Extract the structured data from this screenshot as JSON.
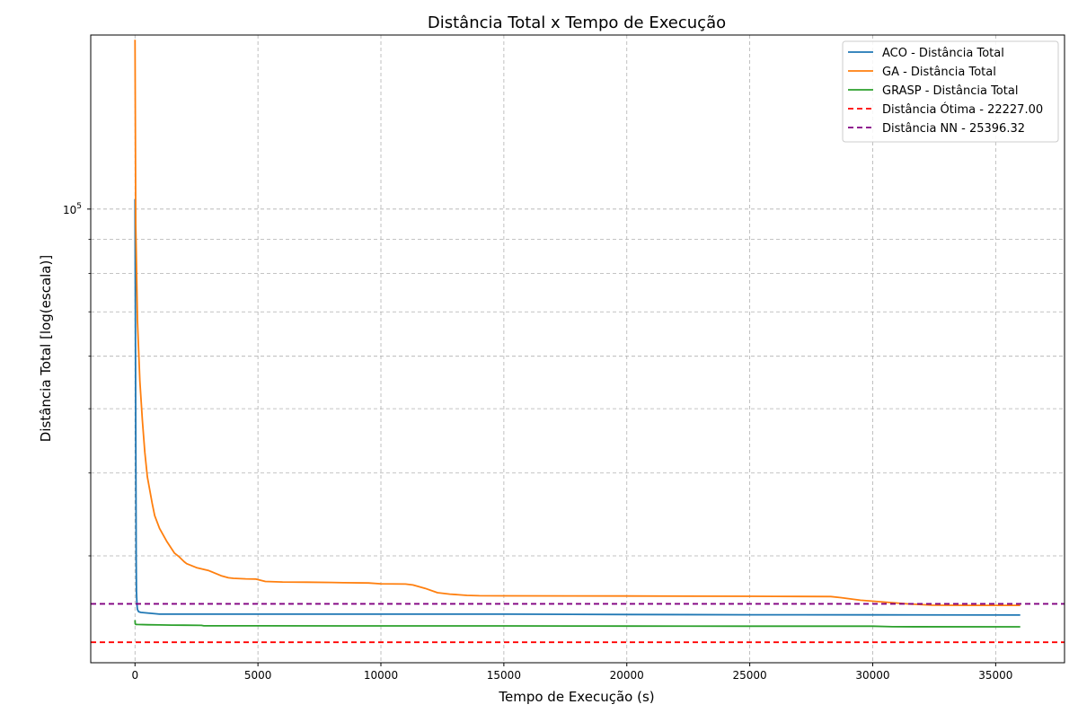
{
  "chart_data": {
    "type": "line",
    "title": "Distância Total x Tempo de Execução",
    "xlabel": "Tempo de Execução (s)",
    "ylabel": "Distância Total [log(escala)]",
    "yscale": "log",
    "xlim": [
      -1800,
      37800
    ],
    "ylim": [
      20700,
      183000
    ],
    "grid": true,
    "grid_style": "dashed",
    "legend_position": "top-right",
    "x_ticks": [
      0,
      5000,
      10000,
      15000,
      20000,
      25000,
      30000,
      35000
    ],
    "x_tick_labels": [
      "0",
      "5000",
      "10000",
      "15000",
      "20000",
      "25000",
      "30000",
      "35000"
    ],
    "y_major_ticks": [
      100000
    ],
    "y_major_tick_labels": [
      "10^5"
    ],
    "y_minor_ticks": [
      30000,
      40000,
      50000,
      60000,
      70000,
      80000,
      90000,
      200000
    ],
    "series": [
      {
        "name": "ACO - Distância Total",
        "color": "#1f77b4",
        "style": "solid",
        "x": [
          0,
          10,
          20,
          30,
          40,
          50,
          60,
          80,
          100,
          150,
          250,
          500,
          1000,
          5000,
          10000,
          15000,
          20000,
          25000,
          30000,
          36000
        ],
        "y": [
          103500,
          85000,
          63000,
          46000,
          36000,
          29500,
          26500,
          25300,
          24900,
          24700,
          24650,
          24600,
          24500,
          24500,
          24500,
          24500,
          24470,
          24450,
          24440,
          24430
        ]
      },
      {
        "name": "GA - Distância Total",
        "color": "#ff7f0e",
        "style": "solid",
        "x": [
          0,
          30,
          100,
          200,
          300,
          400,
          500,
          700,
          800,
          1000,
          1300,
          1600,
          1800,
          2000,
          2100,
          2500,
          3000,
          3500,
          3800,
          4000,
          4500,
          4900,
          5300,
          6000,
          7000,
          8000,
          8500,
          9500,
          10000,
          11000,
          11300,
          11800,
          12300,
          12800,
          13500,
          14000,
          15000,
          20000,
          25000,
          26000,
          28300,
          28700,
          29500,
          30500,
          31500,
          32400,
          33000,
          34000,
          35000,
          36000
        ],
        "y": [
          180000,
          95000,
          68000,
          55000,
          48000,
          43000,
          39500,
          36000,
          34500,
          33000,
          31500,
          30300,
          29900,
          29400,
          29200,
          28800,
          28500,
          28000,
          27800,
          27750,
          27700,
          27680,
          27450,
          27400,
          27380,
          27350,
          27330,
          27300,
          27230,
          27200,
          27120,
          26800,
          26400,
          26270,
          26150,
          26120,
          26110,
          26100,
          26070,
          26060,
          26050,
          25950,
          25720,
          25550,
          25380,
          25280,
          25270,
          25260,
          25260,
          25260
        ]
      },
      {
        "name": "GRASP - Distância Total",
        "color": "#2ca02c",
        "style": "solid",
        "x": [
          0,
          10,
          30,
          100,
          500,
          1000,
          1500,
          2000,
          2700,
          2800,
          5000,
          10000,
          15000,
          20000,
          25000,
          30000,
          30800,
          36000
        ],
        "y": [
          24000,
          23700,
          23650,
          23640,
          23620,
          23600,
          23590,
          23580,
          23570,
          23530,
          23530,
          23520,
          23520,
          23510,
          23500,
          23500,
          23460,
          23450
        ]
      },
      {
        "name": "Distância Ótima - 22227.00",
        "color": "#ff0000",
        "style": "dashed",
        "y_const": 22227.0
      },
      {
        "name": "Distância NN - 25396.32",
        "color": "#800080",
        "style": "dashed",
        "y_const": 25396.32
      }
    ]
  }
}
